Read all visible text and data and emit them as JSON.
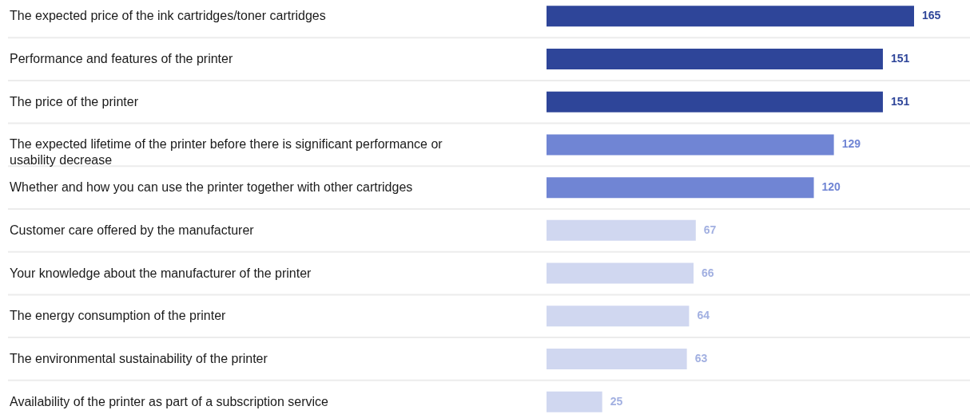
{
  "chart_data": {
    "type": "bar",
    "orientation": "horizontal",
    "categories": [
      "The expected price of the ink cartridges/toner cartridges",
      "Performance and features of the printer",
      "The price of the printer",
      "The expected lifetime of the printer before there is significant performance or usability decrease",
      "Whether and how you can use the printer together with other cartridges",
      "Customer care offered by the manufacturer",
      "Your knowledge about the manufacturer of the printer",
      "The energy consumption of the printer",
      "The environmental sustainability of the printer",
      "Availability of the printer as part of a subscription service"
    ],
    "values": [
      165,
      151,
      151,
      129,
      120,
      67,
      66,
      64,
      63,
      25
    ],
    "colors": [
      "#2e4599",
      "#2e4599",
      "#2e4599",
      "#7085d4",
      "#7085d4",
      "#d0d7f0",
      "#d0d7f0",
      "#d0d7f0",
      "#d0d7f0",
      "#d0d7f0"
    ],
    "data_labels": true,
    "grid": "y",
    "tick_labels": "y"
  }
}
